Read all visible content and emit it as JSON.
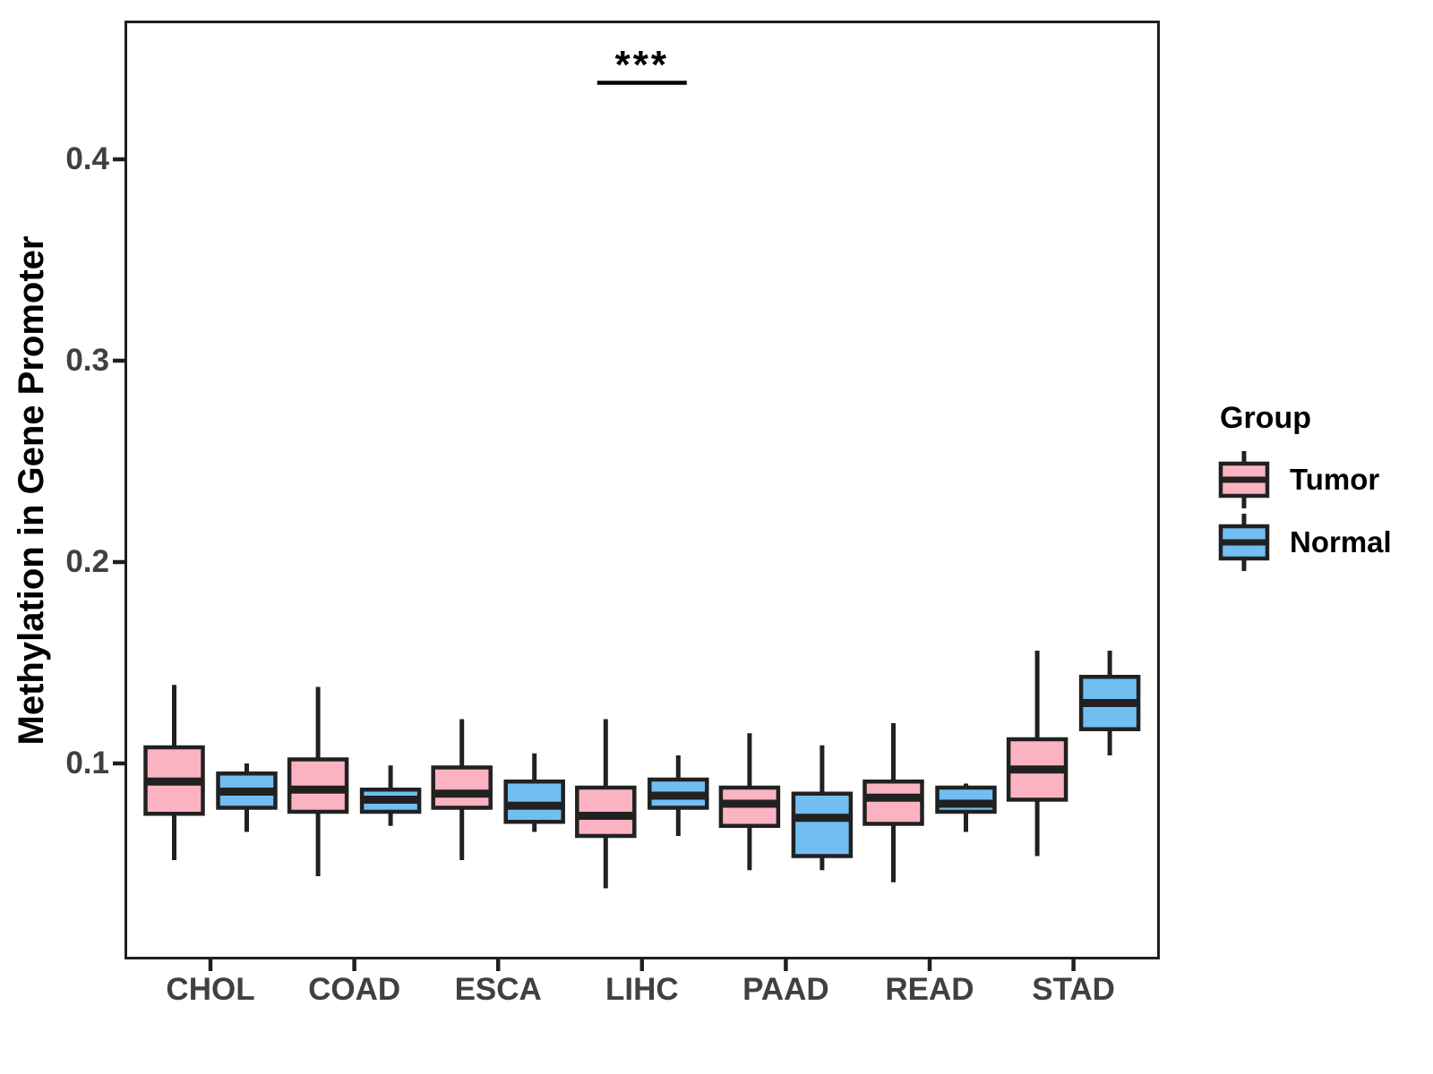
{
  "chart_data": {
    "type": "boxplot",
    "title": "",
    "xlabel": "",
    "ylabel": "Methylation in Gene Promoter",
    "categories": [
      "CHOL",
      "COAD",
      "ESCA",
      "LIHC",
      "PAAD",
      "READ",
      "STAD"
    ],
    "y_ticks": [
      "0.1",
      "0.2",
      "0.3",
      "0.4"
    ],
    "y_tick_values": [
      0.1,
      0.2,
      0.3,
      0.4
    ],
    "ylim": [
      0.003,
      0.469
    ],
    "grid": false,
    "legend": {
      "title": "Group",
      "position": "right"
    },
    "colors": {
      "tumor_fill": "#FBB3C2",
      "normal_fill": "#72BDF2",
      "box_outline": "#212121",
      "axis_text": "#404040",
      "axis_line": "#1F1F1F"
    },
    "series": [
      {
        "name": "Tumor",
        "color": "#FBB3C2",
        "boxes": [
          {
            "category": "CHOL",
            "whisker_low": 0.052,
            "q1": 0.075,
            "median": 0.091,
            "q3": 0.108,
            "whisker_high": 0.139
          },
          {
            "category": "COAD",
            "whisker_low": 0.044,
            "q1": 0.076,
            "median": 0.087,
            "q3": 0.102,
            "whisker_high": 0.138
          },
          {
            "category": "ESCA",
            "whisker_low": 0.052,
            "q1": 0.078,
            "median": 0.085,
            "q3": 0.098,
            "whisker_high": 0.122
          },
          {
            "category": "LIHC",
            "whisker_low": 0.038,
            "q1": 0.064,
            "median": 0.074,
            "q3": 0.088,
            "whisker_high": 0.122
          },
          {
            "category": "PAAD",
            "whisker_low": 0.047,
            "q1": 0.069,
            "median": 0.08,
            "q3": 0.088,
            "whisker_high": 0.115
          },
          {
            "category": "READ",
            "whisker_low": 0.041,
            "q1": 0.07,
            "median": 0.083,
            "q3": 0.091,
            "whisker_high": 0.12
          },
          {
            "category": "STAD",
            "whisker_low": 0.054,
            "q1": 0.082,
            "median": 0.097,
            "q3": 0.112,
            "whisker_high": 0.156
          }
        ]
      },
      {
        "name": "Normal",
        "color": "#72BDF2",
        "boxes": [
          {
            "category": "CHOL",
            "whisker_low": 0.066,
            "q1": 0.078,
            "median": 0.086,
            "q3": 0.095,
            "whisker_high": 0.1
          },
          {
            "category": "COAD",
            "whisker_low": 0.069,
            "q1": 0.076,
            "median": 0.082,
            "q3": 0.087,
            "whisker_high": 0.099
          },
          {
            "category": "ESCA",
            "whisker_low": 0.066,
            "q1": 0.071,
            "median": 0.079,
            "q3": 0.091,
            "whisker_high": 0.105
          },
          {
            "category": "LIHC",
            "whisker_low": 0.064,
            "q1": 0.078,
            "median": 0.084,
            "q3": 0.092,
            "whisker_high": 0.104
          },
          {
            "category": "PAAD",
            "whisker_low": 0.047,
            "q1": 0.054,
            "median": 0.073,
            "q3": 0.085,
            "whisker_high": 0.109
          },
          {
            "category": "READ",
            "whisker_low": 0.066,
            "q1": 0.076,
            "median": 0.08,
            "q3": 0.088,
            "whisker_high": 0.09
          },
          {
            "category": "STAD",
            "whisker_low": 0.104,
            "q1": 0.117,
            "median": 0.13,
            "q3": 0.143,
            "whisker_high": 0.156
          }
        ]
      }
    ],
    "annotations": [
      {
        "label": "***",
        "category": "LIHC",
        "line_y": 0.438
      }
    ]
  }
}
